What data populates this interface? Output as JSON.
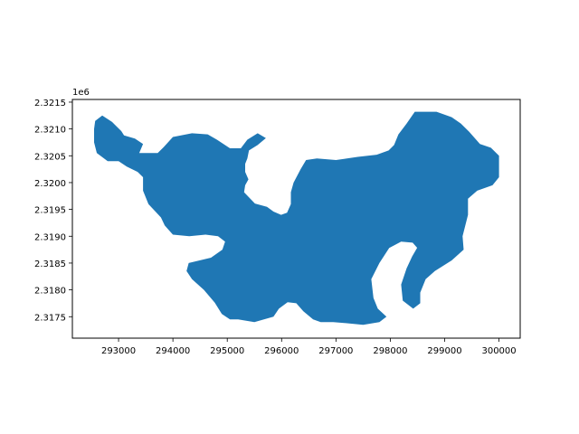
{
  "chart_data": {
    "type": "map",
    "title": "",
    "xlabel": "",
    "ylabel": "",
    "offset_label": "1e6",
    "xlim": [
      292150,
      300390
    ],
    "ylim": [
      2317100,
      2321550
    ],
    "x_ticks": [
      293000,
      294000,
      295000,
      296000,
      297000,
      298000,
      299000,
      300000
    ],
    "x_tick_labels": [
      "293000",
      "294000",
      "295000",
      "296000",
      "297000",
      "298000",
      "299000",
      "300000"
    ],
    "y_ticks": [
      2317500,
      2318000,
      2318500,
      2319000,
      2319500,
      2320000,
      2320500,
      2321000,
      2321500
    ],
    "y_tick_labels": [
      "2.3175",
      "2.3180",
      "2.3185",
      "2.3190",
      "2.3195",
      "2.3200",
      "2.3205",
      "2.3210",
      "2.3215"
    ],
    "grid": false,
    "fill_color": "#1f77b4",
    "polygon": [
      [
        292550,
        2321000
      ],
      [
        292570,
        2321150
      ],
      [
        292700,
        2321250
      ],
      [
        292880,
        2321130
      ],
      [
        293050,
        2320960
      ],
      [
        293100,
        2320880
      ],
      [
        293300,
        2320820
      ],
      [
        293450,
        2320720
      ],
      [
        293380,
        2320550
      ],
      [
        293720,
        2320550
      ],
      [
        293830,
        2320660
      ],
      [
        294000,
        2320850
      ],
      [
        294350,
        2320920
      ],
      [
        294640,
        2320900
      ],
      [
        294810,
        2320800
      ],
      [
        295050,
        2320640
      ],
      [
        295250,
        2320640
      ],
      [
        295370,
        2320800
      ],
      [
        295560,
        2320920
      ],
      [
        295710,
        2320830
      ],
      [
        295560,
        2320700
      ],
      [
        295400,
        2320600
      ],
      [
        295370,
        2320450
      ],
      [
        295330,
        2320350
      ],
      [
        295330,
        2320200
      ],
      [
        295390,
        2320060
      ],
      [
        295330,
        2319950
      ],
      [
        295310,
        2319820
      ],
      [
        295510,
        2319610
      ],
      [
        295730,
        2319550
      ],
      [
        295850,
        2319460
      ],
      [
        295990,
        2319400
      ],
      [
        296100,
        2319440
      ],
      [
        296170,
        2319600
      ],
      [
        296170,
        2319820
      ],
      [
        296220,
        2320000
      ],
      [
        296350,
        2320250
      ],
      [
        296450,
        2320420
      ],
      [
        296650,
        2320450
      ],
      [
        297000,
        2320420
      ],
      [
        297400,
        2320480
      ],
      [
        297750,
        2320520
      ],
      [
        297970,
        2320600
      ],
      [
        298070,
        2320700
      ],
      [
        298150,
        2320900
      ],
      [
        298300,
        2321100
      ],
      [
        298450,
        2321320
      ],
      [
        298850,
        2321320
      ],
      [
        299130,
        2321220
      ],
      [
        299300,
        2321100
      ],
      [
        299450,
        2320950
      ],
      [
        299650,
        2320720
      ],
      [
        299850,
        2320650
      ],
      [
        300000,
        2320500
      ],
      [
        300000,
        2320100
      ],
      [
        299880,
        2319950
      ],
      [
        299600,
        2319850
      ],
      [
        299430,
        2319700
      ],
      [
        299430,
        2319400
      ],
      [
        299330,
        2319000
      ],
      [
        299350,
        2318750
      ],
      [
        299130,
        2318550
      ],
      [
        298820,
        2318350
      ],
      [
        298650,
        2318200
      ],
      [
        298550,
        2317950
      ],
      [
        298550,
        2317750
      ],
      [
        298420,
        2317650
      ],
      [
        298230,
        2317800
      ],
      [
        298200,
        2318100
      ],
      [
        298300,
        2318400
      ],
      [
        298400,
        2318620
      ],
      [
        298530,
        2318850
      ],
      [
        298750,
        2318880
      ],
      [
        298860,
        2318830
      ],
      [
        298870,
        2318600
      ],
      [
        298740,
        2318500
      ],
      [
        298410,
        2318880
      ],
      [
        298200,
        2318900
      ],
      [
        297980,
        2318780
      ],
      [
        297800,
        2318500
      ],
      [
        297650,
        2318200
      ],
      [
        297690,
        2317850
      ],
      [
        297770,
        2317650
      ],
      [
        297930,
        2317500
      ],
      [
        297800,
        2317400
      ],
      [
        297500,
        2317350
      ],
      [
        297180,
        2317380
      ],
      [
        296950,
        2317400
      ],
      [
        296720,
        2317400
      ],
      [
        296580,
        2317450
      ],
      [
        296400,
        2317600
      ],
      [
        296270,
        2317750
      ],
      [
        296110,
        2317770
      ],
      [
        295950,
        2317650
      ],
      [
        295850,
        2317500
      ],
      [
        295500,
        2317400
      ],
      [
        295200,
        2317450
      ],
      [
        295050,
        2317450
      ],
      [
        294900,
        2317550
      ],
      [
        294770,
        2317760
      ],
      [
        294570,
        2318000
      ],
      [
        294350,
        2318200
      ],
      [
        294250,
        2318350
      ],
      [
        294290,
        2318500
      ],
      [
        294700,
        2318600
      ],
      [
        294910,
        2318750
      ],
      [
        294960,
        2318900
      ],
      [
        294830,
        2319000
      ],
      [
        294600,
        2319030
      ],
      [
        294300,
        2319000
      ],
      [
        294000,
        2319030
      ],
      [
        293850,
        2319200
      ],
      [
        293780,
        2319350
      ],
      [
        293550,
        2319600
      ],
      [
        293450,
        2319850
      ],
      [
        293450,
        2320100
      ],
      [
        293350,
        2320200
      ],
      [
        293150,
        2320300
      ],
      [
        293000,
        2320400
      ],
      [
        292800,
        2320400
      ],
      [
        292600,
        2320550
      ],
      [
        292550,
        2320750
      ]
    ]
  }
}
